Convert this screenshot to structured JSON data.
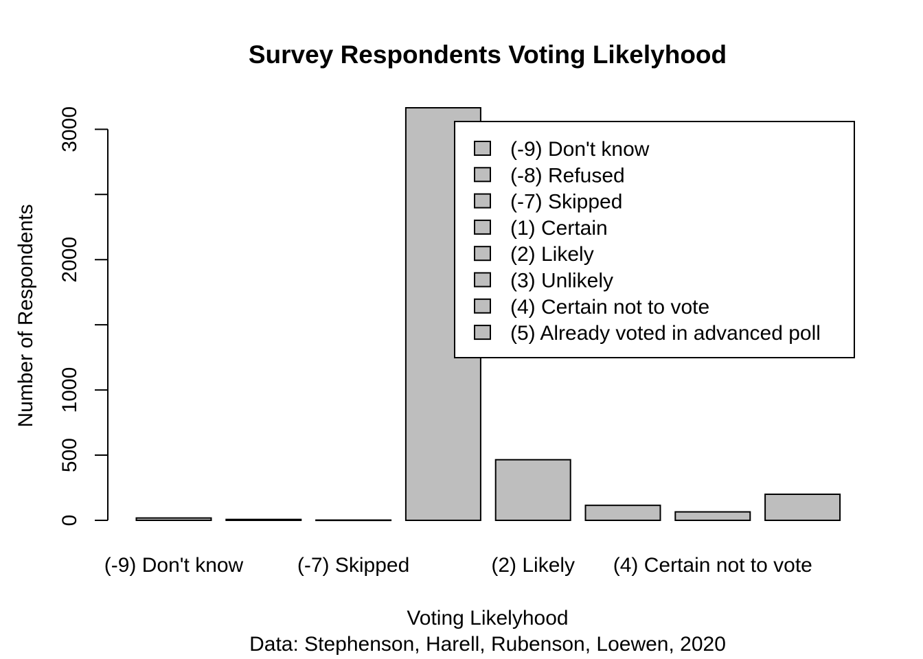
{
  "chart_data": {
    "type": "bar",
    "title": "Survey Respondents Voting Likelyhood",
    "xlabel": "Voting Likelyhood",
    "caption": "Data: Stephenson, Harell, Rubenson, Loewen, 2020",
    "ylabel": "Number of Respondents",
    "categories": [
      "(-9) Don't know",
      "(-8) Refused",
      "(-7) Skipped",
      "(1) Certain",
      "(2) Likely",
      "(3) Unlikely",
      "(4) Certain not to vote",
      "(5) Already voted in advanced poll"
    ],
    "shown_xtick_labels": [
      "(-9) Don't know",
      "(-7) Skipped",
      "(2) Likely",
      "(4) Certain not to vote"
    ],
    "values": [
      18,
      7,
      2,
      3165,
      465,
      115,
      65,
      200
    ],
    "yticks": [
      0,
      500,
      1000,
      2000,
      3000
    ],
    "ylim": [
      0,
      3165
    ],
    "bar_color": "#bebebe",
    "grid": false,
    "legend": {
      "position": "top-right",
      "entries": [
        "(-9) Don't know",
        "(-8) Refused",
        "(-7) Skipped",
        "(1) Certain",
        "(2) Likely",
        "(3) Unlikely",
        "(4) Certain not to vote",
        "(5) Already voted in advanced poll"
      ]
    }
  }
}
